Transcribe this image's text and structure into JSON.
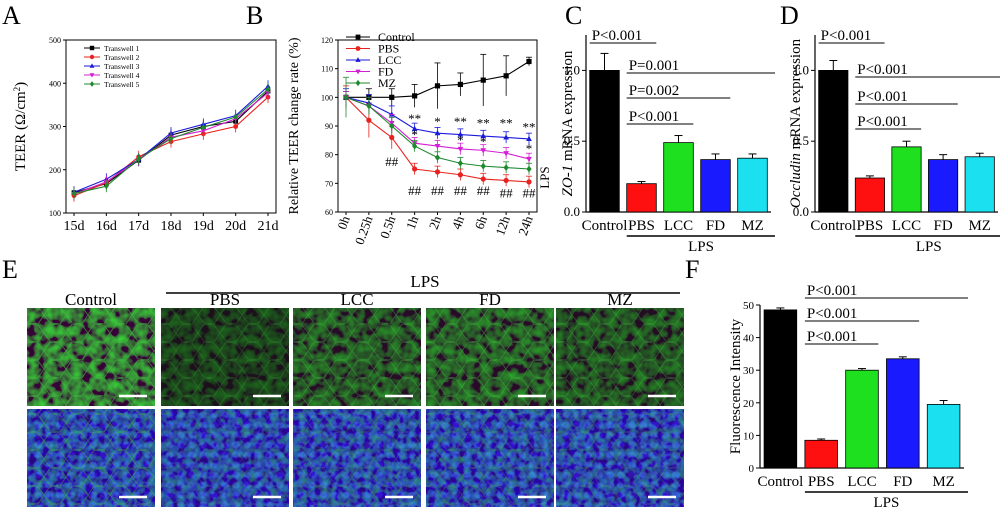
{
  "panels": {
    "A": {
      "label": "A",
      "chart_data": {
        "type": "line",
        "ylabel": "TEER (Ω/cm²)",
        "ylabel_parts": {
          "main": "TEER (",
          "sym": "Ω/cm",
          "sup": "2",
          "end": ")"
        },
        "categories": [
          "15d",
          "16d",
          "17d",
          "18d",
          "19d",
          "20d",
          "21d"
        ],
        "yticks": [
          "100",
          "200",
          "300",
          "400",
          "500"
        ],
        "ylim": [
          100,
          500
        ],
        "series": [
          {
            "name": "Transwell 1",
            "color": "#000000",
            "marker": "square",
            "values": [
              147,
              168,
              222,
              280,
              300,
              312,
              382
            ]
          },
          {
            "name": "Transwell 2",
            "color": "#e8221e",
            "marker": "circle",
            "values": [
              140,
              170,
              230,
              265,
              283,
              300,
              368
            ]
          },
          {
            "name": "Transwell 3",
            "color": "#1a1adb",
            "marker": "triangle",
            "values": [
              148,
              178,
              224,
              285,
              305,
              325,
              393
            ]
          },
          {
            "name": "Transwell 4",
            "color": "#d41fd4",
            "marker": "triangle-down",
            "values": [
              144,
              172,
              223,
              275,
              290,
              318,
              378
            ]
          },
          {
            "name": "Transwell 5",
            "color": "#1e8a2e",
            "marker": "diamond",
            "values": [
              145,
              162,
              225,
              272,
              298,
              322,
              386
            ]
          }
        ]
      }
    },
    "B": {
      "label": "B",
      "chart_data": {
        "type": "line",
        "ylabel": "Relative TEER change rate (%)",
        "categories": [
          "0h",
          "0.25h",
          "0.5h",
          "1h",
          "2h",
          "4h",
          "6h",
          "12h",
          "24h"
        ],
        "yticks": [
          "60",
          "70",
          "80",
          "90",
          "100",
          "110",
          "120"
        ],
        "ylim": [
          60,
          120
        ],
        "side_label": "LPS",
        "series": [
          {
            "name": "Control",
            "color": "#000000",
            "marker": "square",
            "values": [
              100,
              100,
              100,
              100.5,
              104,
              104.5,
              106,
              107.5,
              112.5
            ],
            "errors": [
              2,
              3,
              3,
              4,
              8,
              4,
              9,
              7,
              1.5
            ]
          },
          {
            "name": "PBS",
            "color": "#e8221e",
            "marker": "circle",
            "values": [
              100,
              92,
              86,
              75,
              74,
              73,
              71.5,
              71,
              70.5
            ],
            "errors": [
              4,
              6,
              4,
              2,
              2,
              2,
              2,
              2,
              2
            ]
          },
          {
            "name": "LCC",
            "color": "#1a1adb",
            "marker": "triangle",
            "values": [
              100,
              98,
              94,
              89,
              87.5,
              87,
              86.5,
              86,
              85.5
            ],
            "errors": [
              3,
              3,
              3,
              2,
              2,
              2,
              2,
              2,
              2
            ]
          },
          {
            "name": "FD",
            "color": "#d41fd4",
            "marker": "triangle-down",
            "values": [
              100,
              97,
              91,
              84,
              83,
              82,
              81.5,
              80.5,
              78.5
            ],
            "errors": [
              2,
              3,
              3,
              2,
              2,
              2,
              2,
              2,
              2
            ]
          },
          {
            "name": "MZ",
            "color": "#1e8a2e",
            "marker": "diamond",
            "values": [
              100,
              97,
              90,
              83,
              79,
              77,
              76,
              75.5,
              75
            ],
            "errors": [
              7,
              3,
              3,
              2,
              2,
              2,
              2,
              2,
              2
            ]
          }
        ],
        "annotations": [
          {
            "text": "##",
            "x": 2,
            "y": 76
          },
          {
            "text": "##",
            "x": 3,
            "y": 66
          },
          {
            "text": "##",
            "x": 4,
            "y": 66
          },
          {
            "text": "##",
            "x": 5,
            "y": 66
          },
          {
            "text": "##",
            "x": 6,
            "y": 66
          },
          {
            "text": "##",
            "x": 7,
            "y": 65
          },
          {
            "text": "##",
            "x": 8,
            "y": 65
          },
          {
            "text": "**",
            "x": 3,
            "y": 91
          },
          {
            "text": "*",
            "x": 3,
            "y": 85.5
          },
          {
            "text": "*",
            "x": 4,
            "y": 90
          },
          {
            "text": "**",
            "x": 5,
            "y": 90
          },
          {
            "text": "*",
            "x": 5,
            "y": 83.5
          },
          {
            "text": "**",
            "x": 6,
            "y": 89.5
          },
          {
            "text": "*",
            "x": 6,
            "y": 83
          },
          {
            "text": "**",
            "x": 7,
            "y": 89.5
          },
          {
            "text": "**",
            "x": 8,
            "y": 88
          },
          {
            "text": "*",
            "x": 8,
            "y": 80.5
          }
        ]
      }
    },
    "C": {
      "label": "C",
      "chart_data": {
        "type": "bar",
        "ylabel_italic": "ZO-1",
        "ylabel_rest": " mRNA expression",
        "categories": [
          "Control",
          "PBS",
          "LCC",
          "FD",
          "MZ"
        ],
        "values": [
          1.0,
          0.2,
          0.49,
          0.37,
          0.38
        ],
        "errors": [
          0.12,
          0.015,
          0.05,
          0.04,
          0.03
        ],
        "colors": [
          "#000000",
          "#ff1010",
          "#1fe01f",
          "#1a1aff",
          "#1ae0f0"
        ],
        "yticks": [
          "0.0",
          "0.5",
          "1.0"
        ],
        "ylim": [
          0,
          1.25
        ],
        "group_label": "LPS",
        "comparisons": [
          "P<0.001",
          "P=0.001",
          "P=0.002",
          "P<0.001"
        ]
      }
    },
    "D": {
      "label": "D",
      "chart_data": {
        "type": "bar",
        "ylabel_italic": "Occludin",
        "ylabel_rest": " mRNA expression",
        "categories": [
          "Control",
          "PBS",
          "LCC",
          "FD",
          "MZ"
        ],
        "values": [
          1.0,
          0.24,
          0.46,
          0.37,
          0.39
        ],
        "errors": [
          0.07,
          0.015,
          0.04,
          0.035,
          0.025
        ],
        "colors": [
          "#000000",
          "#ff1010",
          "#1fe01f",
          "#1a1aff",
          "#1ae0f0"
        ],
        "yticks": [
          "0.0",
          "0.5",
          "1.0"
        ],
        "ylim": [
          0,
          1.25
        ],
        "group_label": "LPS",
        "comparisons": [
          "P<0.001",
          "P<0.001",
          "P<0.001",
          "P<0.001"
        ]
      }
    },
    "E": {
      "label": "E",
      "group_label": "LPS",
      "columns": [
        "Control",
        "PBS",
        "LCC",
        "FD",
        "MZ"
      ]
    },
    "F": {
      "label": "F",
      "chart_data": {
        "type": "bar",
        "ylabel": "Fluorescence Intensity",
        "categories": [
          "Control",
          "PBS",
          "LCC",
          "FD",
          "MZ"
        ],
        "values": [
          48.5,
          8.5,
          30,
          33.5,
          19.5
        ],
        "errors": [
          0.6,
          0.4,
          0.5,
          0.6,
          1.2
        ],
        "colors": [
          "#000000",
          "#ff1010",
          "#1fe01f",
          "#1a1aff",
          "#1ae0f0"
        ],
        "yticks": [
          "0",
          "10",
          "20",
          "30",
          "40",
          "50"
        ],
        "ylim": [
          0,
          50
        ],
        "group_label": "LPS",
        "comparisons": [
          "P<0.001",
          "P<0.001",
          "P<0.001"
        ]
      }
    }
  }
}
